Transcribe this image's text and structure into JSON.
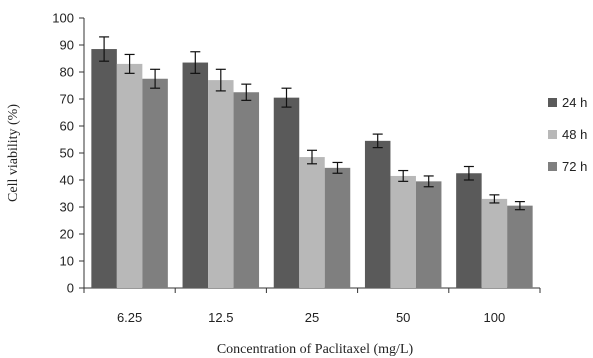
{
  "chart_data": {
    "type": "bar",
    "title": "",
    "xlabel": "Concentration of Paclitaxel (mg/L)",
    "ylabel": "Cell viability (%)",
    "ylim": [
      0,
      100
    ],
    "yticks": [
      0,
      10,
      20,
      30,
      40,
      50,
      60,
      70,
      80,
      90,
      100
    ],
    "categories": [
      "6.25",
      "12.5",
      "25",
      "50",
      "100"
    ],
    "series": [
      {
        "name": "24 h",
        "color": "#5a5a5a",
        "values": [
          88.5,
          83.5,
          70.5,
          54.5,
          42.5
        ],
        "errors": [
          4.5,
          4.0,
          3.5,
          2.5,
          2.5
        ]
      },
      {
        "name": "48 h",
        "color": "#b8b8b8",
        "values": [
          83.0,
          77.0,
          48.5,
          41.5,
          33.0
        ],
        "errors": [
          3.5,
          4.0,
          2.5,
          2.0,
          1.5
        ]
      },
      {
        "name": "72 h",
        "color": "#7f7f7f",
        "values": [
          77.5,
          72.5,
          44.5,
          39.5,
          30.5
        ],
        "errors": [
          3.5,
          3.0,
          2.0,
          2.0,
          1.5
        ]
      }
    ],
    "grid": false,
    "legend_position": "right"
  }
}
